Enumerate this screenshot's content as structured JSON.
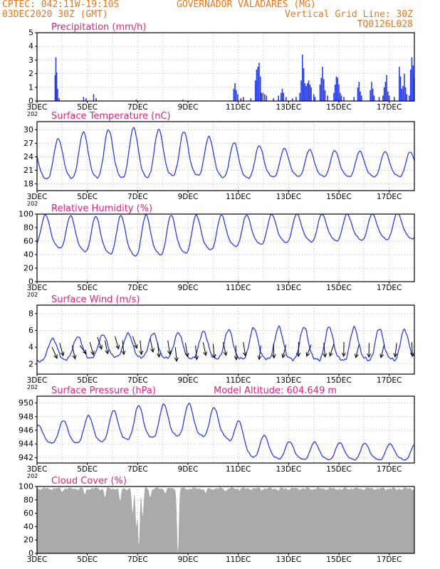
{
  "header": {
    "line1": "CPTEC:  042:11W-19:10S",
    "site": "GOVERNADOR VALADARES (MG)",
    "line2": "03DEC2020 30Z (GMT)",
    "vertical_grid": "Vertical Grid Line: 30Z",
    "model_code": "TQ0126L028",
    "model_altitude": "Model Altitude: 604.649 m"
  },
  "colors": {
    "header": "#e8771f",
    "panel_title": "#e8207a",
    "series": "#2a3ee6",
    "cloud": "#aaaaaa",
    "grid": "#bbbbbb",
    "axis": "#000000"
  },
  "x_axis": {
    "range_days": [
      3,
      18
    ],
    "tick_labels": [
      "3DEC",
      "5DEC",
      "7DEC",
      "9DEC",
      "11DEC",
      "13DEC",
      "15DEC",
      "17DEC"
    ],
    "tick_days": [
      3,
      5,
      7,
      9,
      11,
      13,
      15,
      17
    ],
    "year_stub": "202"
  },
  "chart_data": [
    {
      "type": "bar",
      "title": "Precipitation (mm/h)",
      "ylim": [
        0,
        5
      ],
      "yticks": [
        0,
        1,
        2,
        3,
        4,
        5
      ],
      "bars": [
        [
          3.72,
          1.9
        ],
        [
          3.75,
          3.2
        ],
        [
          3.78,
          2.1
        ],
        [
          3.82,
          0.9
        ],
        [
          3.88,
          0.2
        ],
        [
          4.85,
          0.3
        ],
        [
          4.95,
          0.2
        ],
        [
          5.25,
          0.5
        ],
        [
          5.35,
          0.2
        ],
        [
          6.95,
          0.1
        ],
        [
          8.8,
          0.1
        ],
        [
          10.82,
          0.9
        ],
        [
          10.87,
          1.3
        ],
        [
          10.92,
          0.8
        ],
        [
          10.98,
          0.5
        ],
        [
          11.1,
          0.2
        ],
        [
          11.2,
          0.3
        ],
        [
          11.5,
          0.2
        ],
        [
          11.68,
          1.5
        ],
        [
          11.73,
          2.3
        ],
        [
          11.78,
          2.5
        ],
        [
          11.83,
          2.8
        ],
        [
          11.88,
          1.8
        ],
        [
          11.92,
          0.6
        ],
        [
          11.98,
          0.6
        ],
        [
          12.05,
          0.5
        ],
        [
          12.12,
          0.4
        ],
        [
          12.4,
          0.2
        ],
        [
          12.6,
          0.4
        ],
        [
          12.7,
          0.6
        ],
        [
          12.75,
          0.9
        ],
        [
          12.8,
          0.6
        ],
        [
          12.9,
          0.3
        ],
        [
          13.15,
          0.2
        ],
        [
          13.3,
          0.3
        ],
        [
          13.45,
          0.6
        ],
        [
          13.5,
          1.5
        ],
        [
          13.55,
          3.4
        ],
        [
          13.6,
          2.4
        ],
        [
          13.65,
          1.3
        ],
        [
          13.7,
          1.1
        ],
        [
          13.75,
          1.3
        ],
        [
          13.8,
          1.5
        ],
        [
          13.85,
          1.2
        ],
        [
          13.9,
          1.0
        ],
        [
          14.0,
          0.5
        ],
        [
          14.05,
          0.3
        ],
        [
          14.25,
          1.2
        ],
        [
          14.3,
          1.7
        ],
        [
          14.35,
          2.5
        ],
        [
          14.4,
          1.6
        ],
        [
          14.45,
          0.8
        ],
        [
          14.55,
          0.4
        ],
        [
          14.8,
          0.6
        ],
        [
          14.85,
          1.2
        ],
        [
          14.9,
          1.8
        ],
        [
          14.95,
          1.7
        ],
        [
          15.0,
          1.2
        ],
        [
          15.05,
          0.6
        ],
        [
          15.1,
          0.4
        ],
        [
          15.2,
          0.3
        ],
        [
          15.6,
          0.3
        ],
        [
          15.75,
          1.0
        ],
        [
          15.8,
          1.4
        ],
        [
          15.85,
          0.7
        ],
        [
          15.9,
          0.4
        ],
        [
          16.25,
          0.8
        ],
        [
          16.3,
          1.4
        ],
        [
          16.35,
          0.9
        ],
        [
          16.4,
          0.4
        ],
        [
          16.6,
          0.3
        ],
        [
          16.75,
          0.4
        ],
        [
          16.8,
          1.0
        ],
        [
          16.85,
          1.4
        ],
        [
          16.9,
          1.9
        ],
        [
          16.95,
          0.7
        ],
        [
          17.0,
          0.4
        ],
        [
          17.2,
          0.3
        ],
        [
          17.4,
          2.5
        ],
        [
          17.45,
          1.8
        ],
        [
          17.5,
          0.9
        ],
        [
          17.55,
          1.1
        ],
        [
          17.6,
          2.0
        ],
        [
          17.65,
          1.0
        ],
        [
          17.7,
          0.5
        ],
        [
          17.8,
          0.4
        ],
        [
          17.85,
          2.3
        ],
        [
          17.9,
          3.2
        ],
        [
          17.95,
          2.6
        ],
        [
          18.0,
          1.7
        ]
      ]
    },
    {
      "type": "line",
      "title": "Surface Temperature (nC)",
      "ylim": [
        16.5,
        31.8
      ],
      "yticks": [
        18,
        21,
        24,
        27,
        30
      ],
      "base": {
        "mean": [
          [
            3,
            22.3
          ],
          [
            5,
            23.8
          ],
          [
            7,
            24.0
          ],
          [
            9,
            24.0
          ],
          [
            11,
            22.4
          ],
          [
            13,
            22.2
          ],
          [
            16,
            21.9
          ],
          [
            18,
            21.9
          ]
        ],
        "amp": [
          [
            3,
            4.5
          ],
          [
            5,
            6.0
          ],
          [
            7,
            6.5
          ],
          [
            9,
            5.5
          ],
          [
            11,
            4.5
          ],
          [
            13,
            3.5
          ],
          [
            15,
            3.3
          ],
          [
            18,
            3.1
          ]
        ],
        "peak_frac": 0.85
      },
      "x_tick_labels": "x_axis.tick_labels"
    },
    {
      "type": "line",
      "title": "Relative Humidity (%)",
      "ylim": [
        0,
        100
      ],
      "yticks": [
        0,
        20,
        40,
        60,
        80,
        100
      ],
      "base": {
        "mean": [
          [
            3,
            73
          ],
          [
            5,
            66
          ],
          [
            7,
            63
          ],
          [
            9,
            66
          ],
          [
            11,
            72
          ],
          [
            13,
            76
          ],
          [
            16,
            78
          ],
          [
            18,
            80
          ]
        ],
        "amp": [
          [
            3,
            26
          ],
          [
            5,
            30
          ],
          [
            7,
            35
          ],
          [
            9,
            32
          ],
          [
            11,
            26
          ],
          [
            13,
            24
          ],
          [
            16,
            22
          ],
          [
            18,
            22
          ]
        ],
        "peak_frac": 0.35,
        "clip": [
          0,
          100
        ]
      }
    },
    {
      "type": "line",
      "title": "Surface Wind (m/s)",
      "ylim": [
        0.8,
        9.0
      ],
      "yticks": [
        2,
        4,
        6,
        8
      ],
      "base": {
        "mean": [
          [
            3,
            3.4
          ],
          [
            6,
            4.0
          ],
          [
            9,
            3.9
          ],
          [
            12,
            4.1
          ],
          [
            15,
            4.0
          ],
          [
            18,
            3.9
          ]
        ],
        "amp": [
          [
            3,
            1.5
          ],
          [
            6,
            1.6
          ],
          [
            9,
            1.8
          ],
          [
            12,
            2.2
          ],
          [
            15,
            2.3
          ],
          [
            18,
            2.0
          ]
        ],
        "peak_frac": 0.62
      },
      "arrows": [
        [
          3.6,
          4.0,
          -0.9
        ],
        [
          3.9,
          4.5,
          -1.1
        ],
        [
          4.4,
          4.2,
          -1.2
        ],
        [
          4.7,
          4.2,
          -0.6
        ],
        [
          5.1,
          4.6,
          -1.1
        ],
        [
          5.4,
          5.2,
          -1.0
        ],
        [
          5.7,
          4.8,
          -1.2
        ],
        [
          6.1,
          5.3,
          -1.1
        ],
        [
          6.4,
          4.8,
          -1.4
        ],
        [
          6.8,
          5.3,
          -1.0
        ],
        [
          7.1,
          4.8,
          -1.4
        ],
        [
          7.5,
          5.0,
          -1.2
        ],
        [
          7.8,
          4.5,
          -1.4
        ],
        [
          8.2,
          4.8,
          -1.3
        ],
        [
          8.5,
          4.0,
          -1.4
        ],
        [
          8.9,
          4.5,
          -1.3
        ],
        [
          9.3,
          4.2,
          -1.4
        ],
        [
          9.6,
          4.6,
          -1.2
        ],
        [
          10.0,
          4.4,
          -1.4
        ],
        [
          10.4,
          4.6,
          -1.2
        ],
        [
          10.9,
          4.2,
          -1.5
        ],
        [
          11.2,
          4.6,
          -1.3
        ],
        [
          11.9,
          4.2,
          -1.8
        ],
        [
          12.4,
          4.4,
          -1.5
        ],
        [
          12.9,
          4.3,
          -2.0
        ],
        [
          13.4,
          4.6,
          -1.6
        ],
        [
          13.9,
          4.3,
          -2.2
        ],
        [
          14.4,
          4.5,
          -1.4
        ],
        [
          14.8,
          4.4,
          -2.1
        ],
        [
          15.2,
          4.6,
          -1.6
        ],
        [
          15.8,
          4.3,
          -2.0
        ],
        [
          16.2,
          4.5,
          -1.6
        ],
        [
          16.8,
          4.3,
          -2.0
        ],
        [
          17.3,
          4.5,
          -1.8
        ],
        [
          17.9,
          4.6,
          -1.5
        ]
      ]
    },
    {
      "type": "line",
      "title": "Surface Pressure (hPa)",
      "ylim": [
        941.2,
        951.0
      ],
      "yticks": [
        942,
        944,
        946,
        948,
        950
      ],
      "base": {
        "mean": [
          [
            3,
            945.2
          ],
          [
            5,
            945.8
          ],
          [
            7,
            946.8
          ],
          [
            9,
            947.2
          ],
          [
            10.5,
            946.6
          ],
          [
            11.5,
            943.6
          ],
          [
            13,
            942.8
          ],
          [
            18,
            942.6
          ]
        ],
        "amp": [
          [
            3,
            1.5
          ],
          [
            5,
            2.3
          ],
          [
            7,
            2.8
          ],
          [
            9,
            2.7
          ],
          [
            11,
            2.3
          ],
          [
            13,
            1.5
          ],
          [
            18,
            1.3
          ]
        ],
        "peak_frac": 0.05,
        "clip": [
          941.2,
          951
        ]
      }
    },
    {
      "type": "area",
      "title": "Cloud Cover (%)",
      "ylim": [
        0,
        100
      ],
      "yticks": [
        0,
        20,
        40,
        60,
        80,
        100
      ],
      "dips": [
        [
          4.0,
          92
        ],
        [
          4.9,
          88
        ],
        [
          5.7,
          84
        ],
        [
          6.3,
          78
        ],
        [
          6.8,
          60
        ],
        [
          6.95,
          40
        ],
        [
          7.05,
          12
        ],
        [
          7.2,
          55
        ],
        [
          7.5,
          84
        ],
        [
          8.1,
          90
        ],
        [
          8.6,
          0
        ],
        [
          9.7,
          90
        ],
        [
          10.5,
          93
        ],
        [
          12.6,
          94
        ],
        [
          15.1,
          95
        ],
        [
          17.3,
          95
        ]
      ]
    }
  ]
}
